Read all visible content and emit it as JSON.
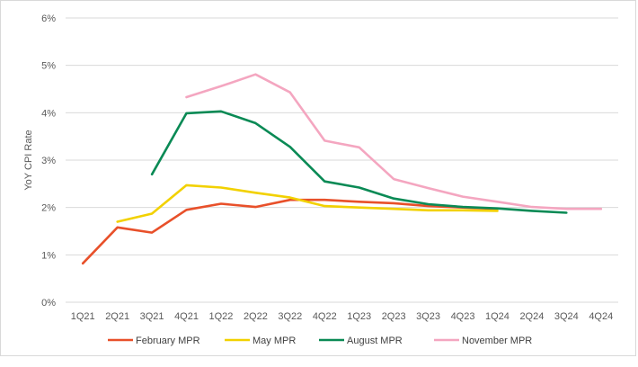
{
  "chart_data": {
    "type": "line",
    "title": "",
    "xlabel": "",
    "ylabel": "YoY CPI Rate",
    "ylim": [
      0,
      6
    ],
    "y_ticks": [
      "0%",
      "1%",
      "2%",
      "3%",
      "4%",
      "5%",
      "6%"
    ],
    "grid": "horizontal",
    "legend_position": "bottom",
    "categories": [
      "1Q21",
      "2Q21",
      "3Q21",
      "4Q21",
      "1Q22",
      "2Q22",
      "3Q22",
      "4Q22",
      "1Q23",
      "2Q23",
      "3Q23",
      "4Q23",
      "1Q24",
      "2Q24",
      "3Q24",
      "4Q24"
    ],
    "series": [
      {
        "name": "February MPR",
        "color": "#e8502a",
        "values": [
          0.82,
          1.58,
          1.47,
          1.95,
          2.08,
          2.01,
          2.16,
          2.16,
          2.12,
          2.09,
          2.03,
          2.0,
          1.97,
          null,
          null,
          null
        ]
      },
      {
        "name": "May MPR",
        "color": "#f2d100",
        "values": [
          null,
          1.7,
          1.87,
          2.47,
          2.42,
          2.31,
          2.21,
          2.03,
          2.0,
          1.97,
          1.94,
          1.94,
          1.93,
          null,
          null,
          null
        ]
      },
      {
        "name": "August MPR",
        "color": "#0a8a55",
        "values": [
          null,
          null,
          2.7,
          3.99,
          4.03,
          3.78,
          3.28,
          2.55,
          2.42,
          2.19,
          2.07,
          2.01,
          1.98,
          1.93,
          1.89,
          null
        ]
      },
      {
        "name": "November MPR",
        "color": "#f4a6c0",
        "values": [
          null,
          null,
          null,
          4.33,
          4.56,
          4.81,
          4.43,
          3.41,
          3.27,
          2.6,
          2.41,
          2.23,
          2.12,
          2.01,
          1.97,
          1.97
        ]
      }
    ]
  }
}
